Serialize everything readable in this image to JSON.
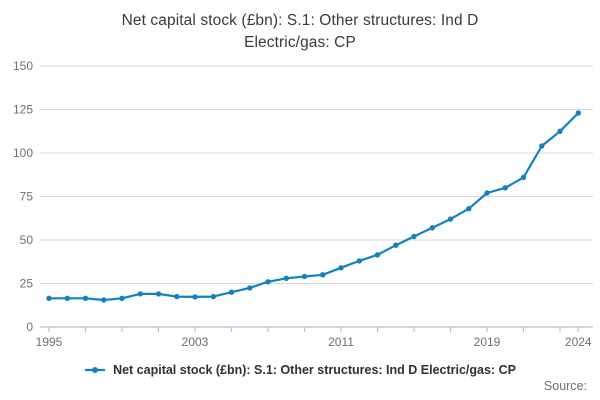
{
  "title": {
    "line1": "Net capital stock (£bn): S.1: Other structures: Ind D",
    "line2": "Electric/gas: CP"
  },
  "legend": {
    "label": "Net capital stock (£bn): S.1: Other structures: Ind D Electric/gas: CP"
  },
  "source_label": "Source:",
  "colors": {
    "line": "#1380c3",
    "marker": "#1380c3",
    "grid": "#d9d9d9",
    "axis": "#b4c0d6",
    "tick_text": "#6f6f6f",
    "title_text": "#3a3a3a",
    "legend_text": "#303030",
    "source_text": "#6f6f6f",
    "background": "#ffffff"
  },
  "chart_data": {
    "type": "line",
    "title": "Net capital stock (£bn): S.1: Other structures: Ind D Electric/gas: CP",
    "xlabel": "",
    "ylabel": "",
    "x": [
      1995,
      1996,
      1997,
      1998,
      1999,
      2000,
      2001,
      2002,
      2003,
      2004,
      2005,
      2006,
      2007,
      2008,
      2009,
      2010,
      2011,
      2012,
      2013,
      2014,
      2015,
      2016,
      2017,
      2018,
      2019,
      2020,
      2021,
      2022,
      2023,
      2024
    ],
    "series": [
      {
        "name": "Net capital stock (£bn): S.1: Other structures: Ind D Electric/gas: CP",
        "values": [
          16.5,
          16.5,
          16.5,
          15.5,
          16.5,
          19,
          19,
          17.5,
          17.3,
          17.5,
          20,
          22.5,
          26,
          28,
          29,
          30,
          34,
          38,
          41.5,
          47,
          52,
          57,
          62,
          68,
          77,
          80,
          86,
          104,
          112.5,
          123
        ]
      }
    ],
    "ylim": [
      0,
      150
    ],
    "xlim": [
      1995,
      2024
    ],
    "yticks": [
      0,
      25,
      50,
      75,
      100,
      125,
      150
    ],
    "xtick_labels": [
      1995,
      2003,
      2011,
      2019,
      2024
    ],
    "minor_xtick_step_years": 2,
    "grid": "horizontal",
    "legend_position": "bottom",
    "marker": "circle"
  }
}
